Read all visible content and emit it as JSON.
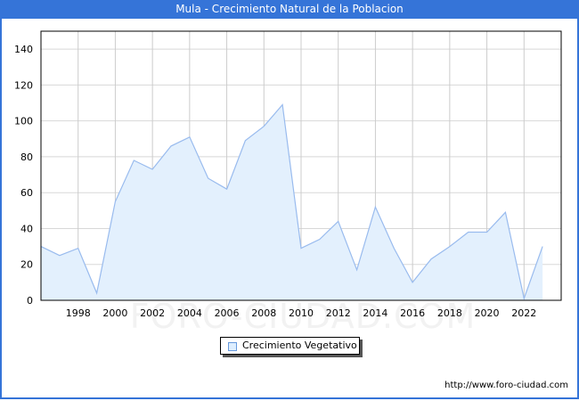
{
  "header": {
    "title": "Mula - Crecimiento Natural de la Poblacion"
  },
  "legend": {
    "label": "Crecimiento Vegetativo"
  },
  "footer": {
    "url": "http://www.foro-ciudad.com"
  },
  "watermark": "FORO-CIUDAD.COM",
  "colors": {
    "title_bar": "#3574d8",
    "line": "#99bbee",
    "fill": "#e3f0fd",
    "grid": "#d8d8d8"
  },
  "chart_data": {
    "type": "area",
    "title": "Mula - Crecimiento Natural de la Poblacion",
    "xlabel": "",
    "ylabel": "",
    "x": [
      1996,
      1997,
      1998,
      1999,
      2000,
      2001,
      2002,
      2003,
      2004,
      2005,
      2006,
      2007,
      2008,
      2009,
      2010,
      2011,
      2012,
      2013,
      2014,
      2015,
      2016,
      2017,
      2018,
      2019,
      2020,
      2021,
      2022,
      2023
    ],
    "series": [
      {
        "name": "Crecimiento Vegetativo",
        "values": [
          30,
          25,
          29,
          4,
          55,
          78,
          73,
          86,
          91,
          68,
          62,
          89,
          97,
          109,
          29,
          34,
          44,
          17,
          52,
          29,
          10,
          23,
          30,
          38,
          38,
          49,
          1,
          30
        ]
      }
    ],
    "x_ticks": [
      1998,
      2000,
      2002,
      2004,
      2006,
      2008,
      2010,
      2012,
      2014,
      2016,
      2018,
      2020,
      2022
    ],
    "y_ticks": [
      0,
      20,
      40,
      60,
      80,
      100,
      120,
      140
    ],
    "ylim": [
      0,
      150
    ],
    "xlim": [
      1996,
      2024
    ],
    "grid": true,
    "legend_position": "bottom-center"
  }
}
